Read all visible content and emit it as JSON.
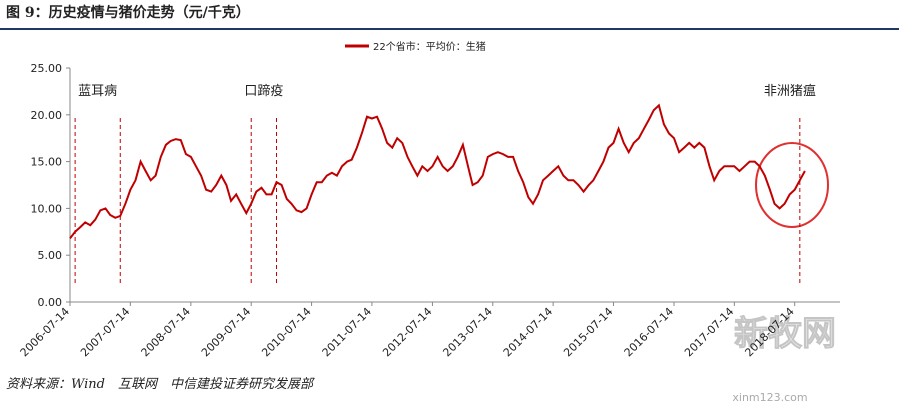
{
  "chart_data": {
    "type": "line",
    "title": "图 9：历史疫情与猪价走势（元/千克）",
    "source": "资料来源：Wind　互联网　中信建投证券研究发展部",
    "watermark": "新牧网",
    "watermark_url": "xinm123.com",
    "x": [
      "2006-07-14",
      "2006-08-14",
      "2006-09-14",
      "2006-10-14",
      "2006-11-14",
      "2006-12-14",
      "2007-01-14",
      "2007-02-14",
      "2007-03-14",
      "2007-04-14",
      "2007-05-14",
      "2007-06-14",
      "2007-07-14",
      "2007-08-14",
      "2007-09-14",
      "2007-10-14",
      "2007-11-14",
      "2007-12-14",
      "2008-01-14",
      "2008-02-14",
      "2008-03-14",
      "2008-04-14",
      "2008-05-14",
      "2008-06-14",
      "2008-07-14",
      "2008-08-14",
      "2008-09-14",
      "2008-10-14",
      "2008-11-14",
      "2008-12-14",
      "2009-01-14",
      "2009-02-14",
      "2009-03-14",
      "2009-04-14",
      "2009-05-14",
      "2009-06-14",
      "2009-07-14",
      "2009-08-14",
      "2009-09-14",
      "2009-10-14",
      "2009-11-14",
      "2009-12-14",
      "2010-01-14",
      "2010-02-14",
      "2010-03-14",
      "2010-04-14",
      "2010-05-14",
      "2010-06-14",
      "2010-07-14",
      "2010-08-14",
      "2010-09-14",
      "2010-10-14",
      "2010-11-14",
      "2010-12-14",
      "2011-01-14",
      "2011-02-14",
      "2011-03-14",
      "2011-04-14",
      "2011-05-14",
      "2011-06-14",
      "2011-07-14",
      "2011-08-14",
      "2011-09-14",
      "2011-10-14",
      "2011-11-14",
      "2011-12-14",
      "2012-01-14",
      "2012-02-14",
      "2012-03-14",
      "2012-04-14",
      "2012-05-14",
      "2012-06-14",
      "2012-07-14",
      "2012-08-14",
      "2012-09-14",
      "2012-10-14",
      "2012-11-14",
      "2012-12-14",
      "2013-01-14",
      "2013-02-14",
      "2013-03-14",
      "2013-04-14",
      "2013-05-14",
      "2013-06-14",
      "2013-07-14",
      "2013-08-14",
      "2013-09-14",
      "2013-10-14",
      "2013-11-14",
      "2013-12-14",
      "2014-01-14",
      "2014-02-14",
      "2014-03-14",
      "2014-04-14",
      "2014-05-14",
      "2014-06-14",
      "2014-07-14",
      "2014-08-14",
      "2014-09-14",
      "2014-10-14",
      "2014-11-14",
      "2014-12-14",
      "2015-01-14",
      "2015-02-14",
      "2015-03-14",
      "2015-04-14",
      "2015-05-14",
      "2015-06-14",
      "2015-07-14",
      "2015-08-14",
      "2015-09-14",
      "2015-10-14",
      "2015-11-14",
      "2015-12-14",
      "2016-01-14",
      "2016-02-14",
      "2016-03-14",
      "2016-04-14",
      "2016-05-14",
      "2016-06-14",
      "2016-07-14",
      "2016-08-14",
      "2016-09-14",
      "2016-10-14",
      "2016-11-14",
      "2016-12-14",
      "2017-01-14",
      "2017-02-14",
      "2017-03-14",
      "2017-04-14",
      "2017-05-14",
      "2017-06-14",
      "2017-07-14",
      "2017-08-14",
      "2017-09-14",
      "2017-10-14",
      "2017-11-14",
      "2017-12-14",
      "2018-01-14",
      "2018-02-14",
      "2018-03-14",
      "2018-04-14",
      "2018-05-14",
      "2018-06-14",
      "2018-07-14",
      "2018-08-14",
      "2018-09-14"
    ],
    "series": [
      {
        "name": "22个省市：平均价：生猪",
        "color": "#c00000",
        "values": [
          6.8,
          7.5,
          8.0,
          8.5,
          8.2,
          8.8,
          9.8,
          10.0,
          9.3,
          9.0,
          9.2,
          10.5,
          12.0,
          13.0,
          15.0,
          14.0,
          13.0,
          13.5,
          15.5,
          16.8,
          17.2,
          17.4,
          17.3,
          15.8,
          15.5,
          14.5,
          13.5,
          12.0,
          11.8,
          12.5,
          13.5,
          12.5,
          10.8,
          11.5,
          10.5,
          9.5,
          10.5,
          11.8,
          12.2,
          11.5,
          11.5,
          12.8,
          12.5,
          11.0,
          10.5,
          9.8,
          9.6,
          10.0,
          11.5,
          12.8,
          12.8,
          13.5,
          13.8,
          13.5,
          14.5,
          15.0,
          15.2,
          16.5,
          18.0,
          19.8,
          19.6,
          19.8,
          18.5,
          17.0,
          16.5,
          17.5,
          17.0,
          15.5,
          14.5,
          13.5,
          14.5,
          14.0,
          14.5,
          15.5,
          14.5,
          14.0,
          14.5,
          15.5,
          16.8,
          14.5,
          12.5,
          12.8,
          13.5,
          15.5,
          15.8,
          16.0,
          15.8,
          15.5,
          15.5,
          14.0,
          12.8,
          11.2,
          10.5,
          11.5,
          13.0,
          13.5,
          14.0,
          14.5,
          13.5,
          13.0,
          13.0,
          12.5,
          11.8,
          12.5,
          13.0,
          14.0,
          15.0,
          16.5,
          17.0,
          18.5,
          17.0,
          16.0,
          17.0,
          17.5,
          18.5,
          19.5,
          20.5,
          21.0,
          19.0,
          18.0,
          17.5,
          16.0,
          16.5,
          17.0,
          16.5,
          17.0,
          16.5,
          14.5,
          13.0,
          14.0,
          14.5,
          14.5,
          14.5,
          14.0,
          14.5,
          15.0,
          15.0,
          14.5,
          13.5,
          12.0,
          10.5,
          10.0,
          10.5,
          11.5,
          12.0,
          13.0,
          14.0
        ]
      }
    ],
    "annotations": [
      {
        "text": "蓝耳病",
        "x": [
          "2006-08-14",
          "2007-05-14"
        ]
      },
      {
        "text": "口蹄疫",
        "x": [
          "2009-07-14",
          "2009-12-14"
        ]
      },
      {
        "text": "非洲猪瘟",
        "x": [
          "2018-08-14"
        ]
      }
    ],
    "xlim": [
      "2006-07-14",
      "2019-04-14"
    ],
    "xticks": [
      "2006-07-14",
      "2007-07-14",
      "2008-07-14",
      "2009-07-14",
      "2010-07-14",
      "2011-07-14",
      "2012-07-14",
      "2013-07-14",
      "2014-07-14",
      "2015-07-14",
      "2016-07-14",
      "2017-07-14",
      "2018-07-14"
    ],
    "ylim": [
      0,
      25
    ],
    "yticks": [
      {
        "value": 0,
        "label": "0.00"
      },
      {
        "value": 5,
        "label": "5.00"
      },
      {
        "value": 10,
        "label": "10.00"
      },
      {
        "value": 15,
        "label": "15.00"
      },
      {
        "value": 20,
        "label": "20.00"
      },
      {
        "value": 25,
        "label": "25.00"
      }
    ],
    "legend": "top"
  }
}
